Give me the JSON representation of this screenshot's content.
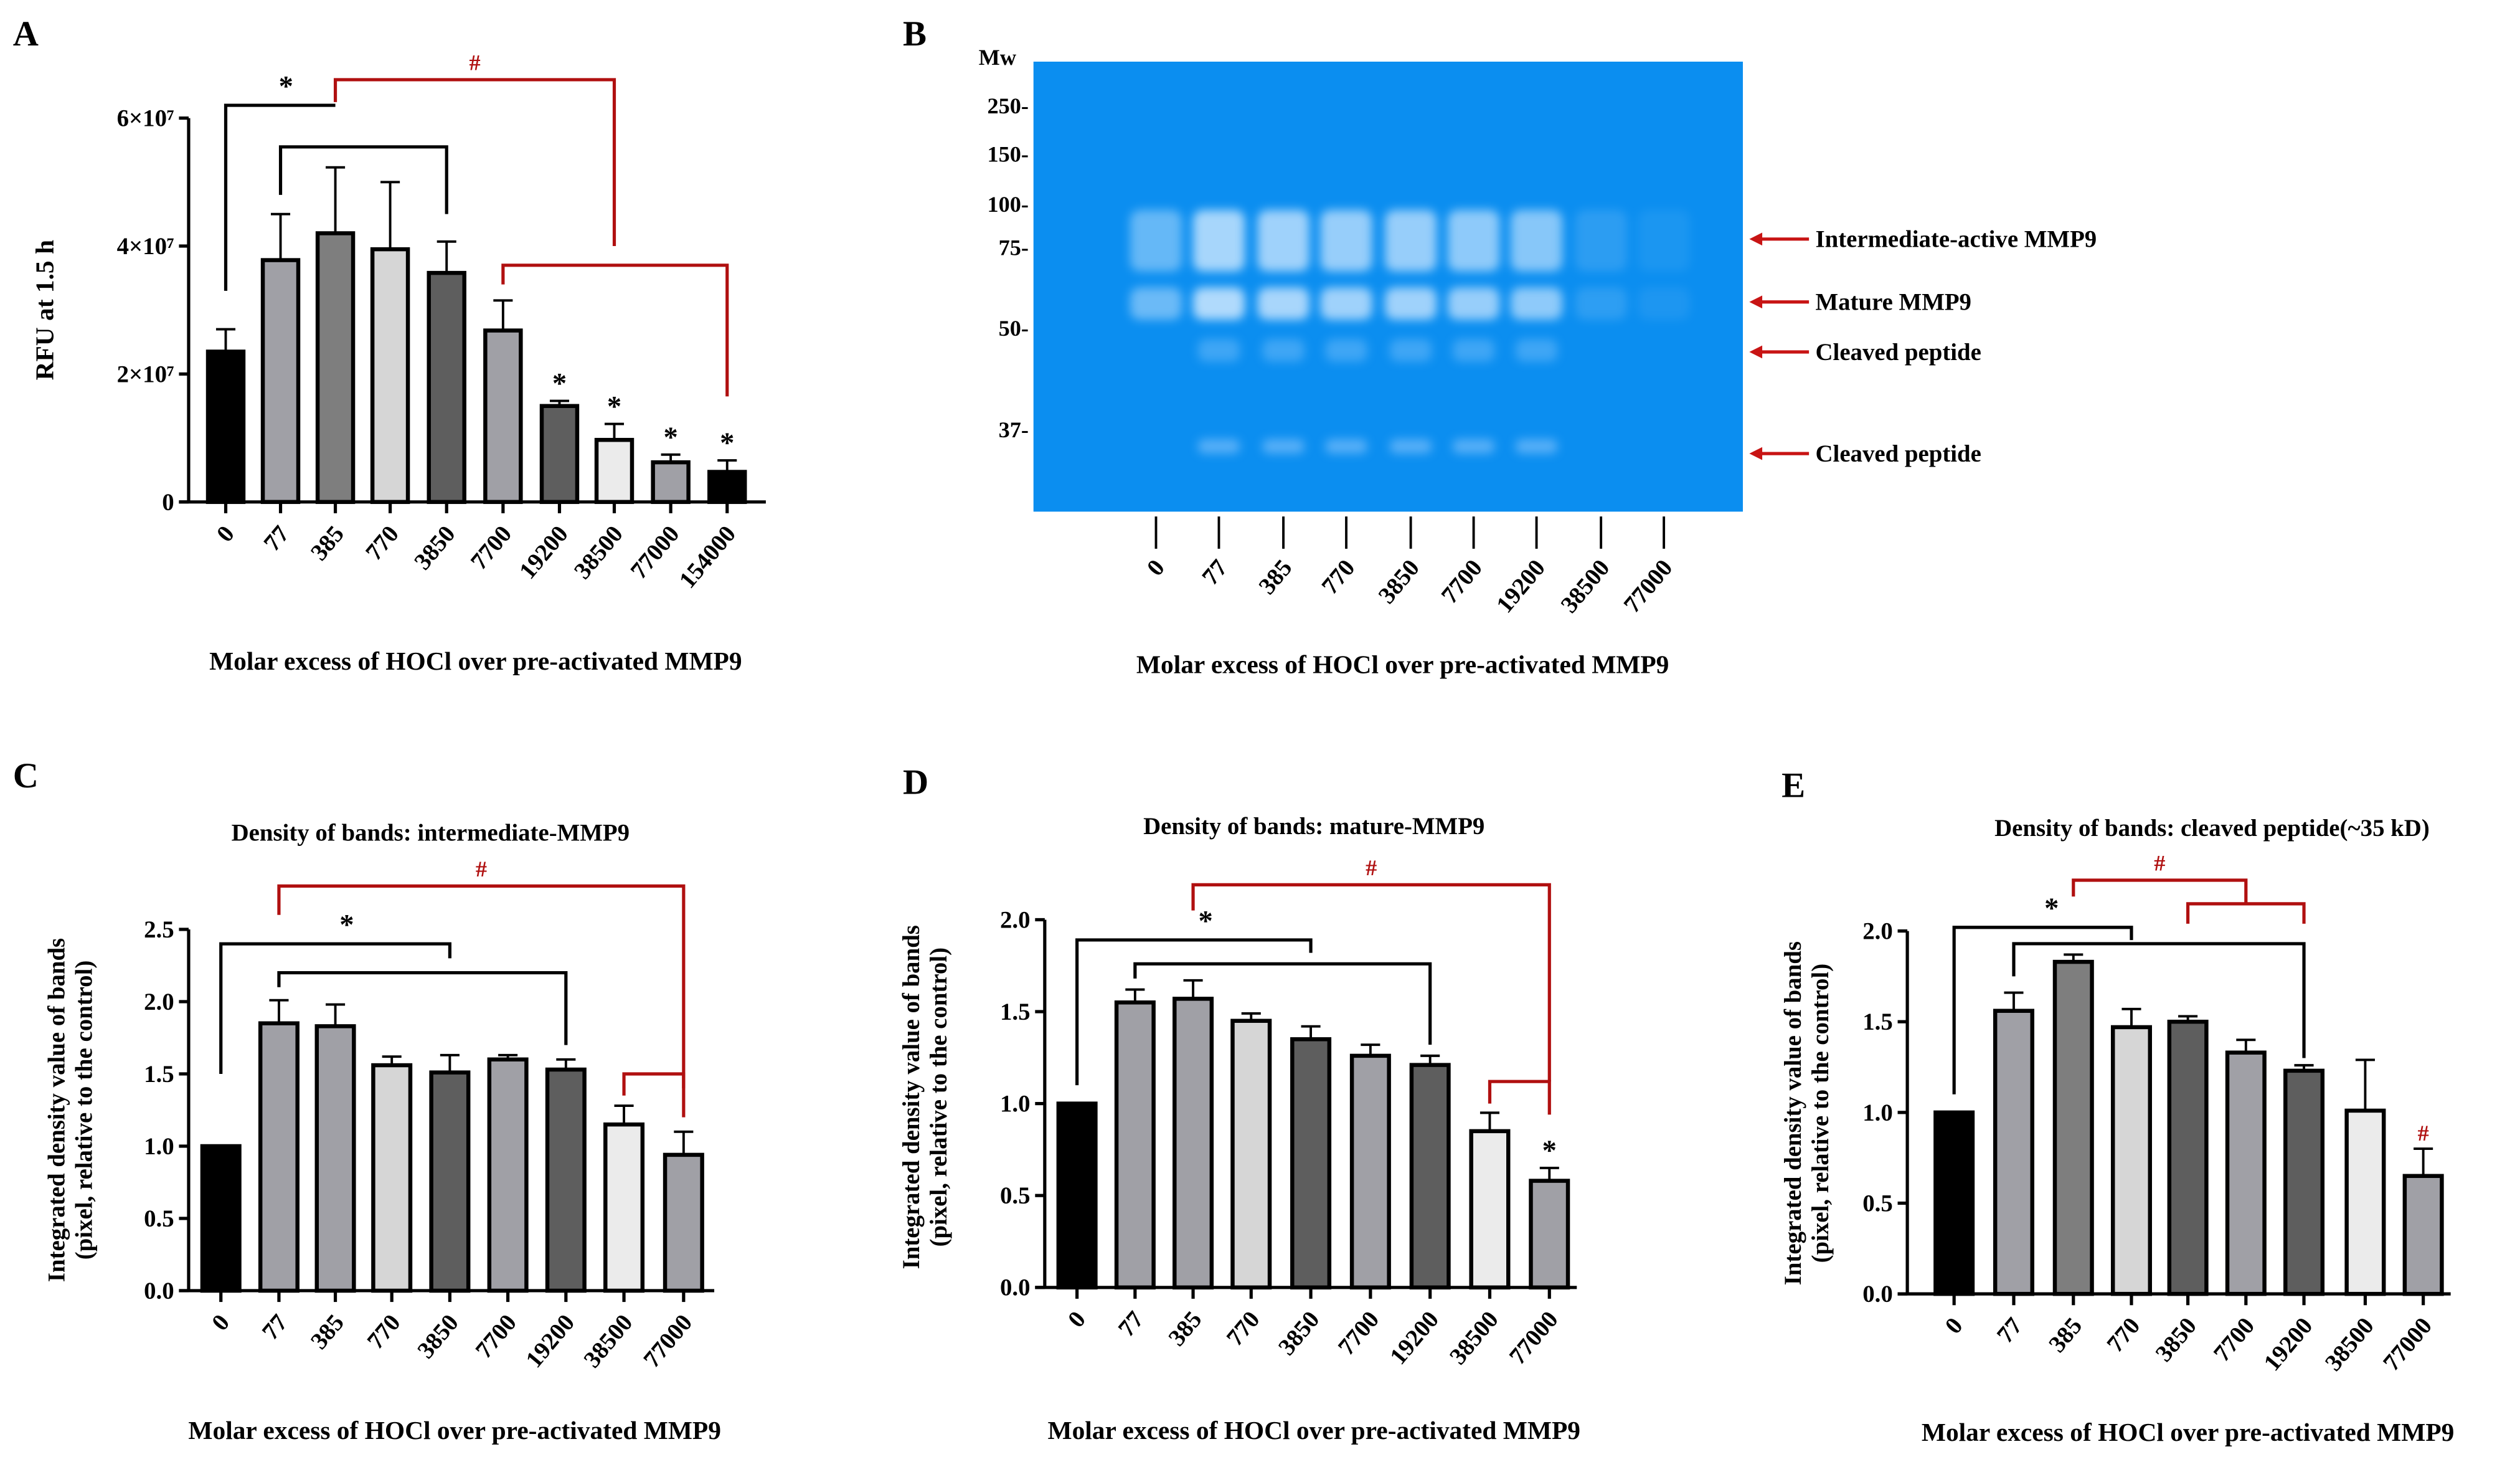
{
  "panel_labels": [
    "A",
    "B",
    "C",
    "D",
    "E"
  ],
  "colors": {
    "black": "#000000",
    "mid": "#a0a0a6",
    "dark": "#7e7e7e",
    "light": "#d6d6d6",
    "darker": "#5e5e5e",
    "lightest": "#ebebeb",
    "sig_black": "#000000",
    "sig_red": "#b01010",
    "gel": "#0b8ef0",
    "arrow": "#c81414"
  },
  "gel": {
    "mw_title": "Mw",
    "mw_markers": [
      "250-",
      "150-",
      "100-",
      "75-",
      "50-",
      "37-"
    ],
    "lanes": [
      "0",
      "77",
      "385",
      "770",
      "3850",
      "7700",
      "19200",
      "38500",
      "77000"
    ],
    "annotations": [
      "Intermediate-active MMP9",
      "Mature MMP9",
      "Cleaved peptide",
      "Cleaved peptide"
    ],
    "xlabel": "Molar excess of HOCl over pre-activated MMP9"
  },
  "chart_data": [
    {
      "id": "A",
      "type": "bar",
      "title": "",
      "xlabel": "Molar excess of HOCl over pre-activated MMP9",
      "ylabel": "RFU at 1.5 h",
      "ylim": [
        0,
        60000000
      ],
      "yticks": [
        0,
        20000000,
        40000000,
        60000000
      ],
      "ytick_labels": [
        "0",
        "2×10⁷",
        "4×10⁷",
        "6×10⁷"
      ],
      "categories": [
        "0",
        "77",
        "385",
        "770",
        "3850",
        "7700",
        "19200",
        "38500",
        "77000",
        "154000"
      ],
      "values": [
        23500000,
        37800000,
        42000000,
        39500000,
        35800000,
        26800000,
        15000000,
        9700000,
        6200000,
        4700000
      ],
      "error_top": [
        27000000,
        45000000,
        52300000,
        50000000,
        40700000,
        31500000,
        15800000,
        12200000,
        7400000,
        6500000
      ],
      "fills": [
        "black",
        "mid",
        "dark",
        "light",
        "darker",
        "mid",
        "darker",
        "lightest",
        "mid",
        "black"
      ],
      "marks": [
        "",
        "",
        "",
        "",
        "",
        "",
        "*",
        "*",
        "*",
        "*"
      ],
      "brackets": [
        {
          "from": 0,
          "to": 2,
          "level": 62000000,
          "drop_from": 33000000,
          "drop_to": null,
          "label": "*",
          "color": "sig_black",
          "center": 2
        },
        {
          "from": 1,
          "to": 4,
          "level": 55500000,
          "drop_from": 48000000,
          "drop_to": 45000000,
          "label": "",
          "color": "sig_black"
        },
        {
          "from": 2,
          "to": 7,
          "level": 66000000,
          "drop_from": 62500000,
          "drop_to": 40000000,
          "label": "#",
          "color": "sig_red"
        },
        {
          "from": 5,
          "to": 9,
          "level": 37000000,
          "drop_from": 34000000,
          "drop_to": 16500000,
          "label": "",
          "color": "sig_red"
        }
      ]
    },
    {
      "id": "C",
      "type": "bar",
      "title": "Density of bands: intermediate-MMP9",
      "xlabel": "Molar excess of HOCl over pre-activated MMP9",
      "ylabel": "Integrated density value of bands",
      "ylabel2": "(pixel, relative to the control)",
      "ylim": [
        0,
        2.5
      ],
      "yticks": [
        0,
        0.5,
        1.0,
        1.5,
        2.0,
        2.5
      ],
      "ytick_labels": [
        "0.0",
        "0.5",
        "1.0",
        "1.5",
        "2.0",
        "2.5"
      ],
      "categories": [
        "0",
        "77",
        "385",
        "770",
        "3850",
        "7700",
        "19200",
        "38500",
        "77000"
      ],
      "values": [
        1.0,
        1.85,
        1.83,
        1.56,
        1.51,
        1.6,
        1.53,
        1.15,
        0.94
      ],
      "error_top": [
        1.0,
        2.01,
        1.98,
        1.62,
        1.63,
        1.63,
        1.6,
        1.28,
        1.1
      ],
      "fills": [
        "black",
        "mid",
        "mid",
        "light",
        "darker",
        "mid",
        "darker",
        "lightest",
        "mid"
      ],
      "marks": [
        "",
        "",
        "",
        "",
        "",
        "",
        "",
        "",
        ""
      ],
      "brackets": [
        {
          "from": 0,
          "to": 4,
          "level": 2.4,
          "drop_from": 1.5,
          "drop_to": 2.3,
          "label": "*",
          "color": "sig_black",
          "center": 1.8
        },
        {
          "from": 1,
          "to": 6,
          "level": 2.2,
          "drop_from": 2.1,
          "drop_to": 1.7,
          "label": "",
          "color": "sig_black"
        },
        {
          "from": 1,
          "to": 8,
          "level": 2.8,
          "drop_from": 2.6,
          "drop_to": 1.4,
          "label": "#",
          "color": "sig_red"
        },
        {
          "from": 7,
          "to": 8,
          "level": 1.5,
          "drop_from": 1.35,
          "drop_to": 1.2,
          "label": "",
          "color": "sig_red"
        }
      ]
    },
    {
      "id": "D",
      "type": "bar",
      "title": "Density of bands: mature-MMP9",
      "xlabel": "Molar excess of HOCl over pre-activated MMP9",
      "ylabel": "Integrated density value of bands",
      "ylabel2": "(pixel, relative to the control)",
      "ylim": [
        0,
        2.0
      ],
      "yticks": [
        0,
        0.5,
        1.0,
        1.5,
        2.0
      ],
      "ytick_labels": [
        "0.0",
        "0.5",
        "1.0",
        "1.5",
        "2.0"
      ],
      "categories": [
        "0",
        "77",
        "385",
        "770",
        "3850",
        "7700",
        "19200",
        "38500",
        "77000"
      ],
      "values": [
        1.0,
        1.55,
        1.57,
        1.45,
        1.35,
        1.26,
        1.21,
        0.85,
        0.58
      ],
      "error_top": [
        1.0,
        1.62,
        1.67,
        1.49,
        1.42,
        1.32,
        1.26,
        0.95,
        0.65
      ],
      "fills": [
        "black",
        "mid",
        "mid",
        "light",
        "darker",
        "mid",
        "darker",
        "lightest",
        "mid"
      ],
      "marks": [
        "",
        "",
        "",
        "",
        "",
        "",
        "",
        "",
        "*"
      ],
      "brackets": [
        {
          "from": 0,
          "to": 4,
          "level": 1.89,
          "drop_from": 1.1,
          "drop_to": 1.82,
          "label": "*",
          "color": "sig_black",
          "center": 1.6
        },
        {
          "from": 1,
          "to": 6,
          "level": 1.76,
          "drop_from": 1.68,
          "drop_to": 1.32,
          "label": "",
          "color": "sig_black"
        },
        {
          "from": 2,
          "to": 8,
          "level": 2.19,
          "drop_from": 2.05,
          "drop_to": 1.12,
          "label": "#",
          "color": "sig_red"
        },
        {
          "from": 7,
          "to": 8,
          "level": 1.12,
          "drop_from": 1.0,
          "drop_to": 0.94,
          "label": "",
          "color": "sig_red"
        }
      ]
    },
    {
      "id": "E",
      "type": "bar",
      "title": "Density of bands: cleaved peptide(~35 kD)",
      "xlabel": "Molar excess of HOCl over pre-activated MMP9",
      "ylabel": "Integrated density value of bands",
      "ylabel2": "(pixel, relative to the control)",
      "ylim": [
        0,
        2.0
      ],
      "yticks": [
        0,
        0.5,
        1.0,
        1.5,
        2.0
      ],
      "ytick_labels": [
        "0.0",
        "0.5",
        "1.0",
        "1.5",
        "2.0"
      ],
      "categories": [
        "0",
        "77",
        "385",
        "770",
        "3850",
        "7700",
        "19200",
        "38500",
        "77000"
      ],
      "values": [
        1.0,
        1.56,
        1.83,
        1.47,
        1.5,
        1.33,
        1.23,
        1.01,
        0.65
      ],
      "error_top": [
        1.0,
        1.66,
        1.87,
        1.57,
        1.53,
        1.4,
        1.26,
        1.29,
        0.8
      ],
      "fills": [
        "black",
        "mid",
        "dark",
        "light",
        "darker",
        "mid",
        "darker",
        "lightest",
        "mid"
      ],
      "marks": [
        "",
        "",
        "",
        "",
        "",
        "",
        "",
        "",
        "#"
      ],
      "brackets": [
        {
          "from": 0,
          "to": 3,
          "level": 2.02,
          "drop_from": 1.1,
          "drop_to": 1.95,
          "label": "*",
          "color": "sig_black",
          "center": 1.5
        },
        {
          "from": 1,
          "to": 6,
          "level": 1.93,
          "drop_from": 1.75,
          "drop_to": 1.3,
          "label": "",
          "color": "sig_black"
        },
        {
          "from": 2,
          "to": 5,
          "level": 2.28,
          "drop_from": 2.19,
          "drop_to": 2.15,
          "label": "#",
          "color": "sig_red"
        },
        {
          "from": 4,
          "to": 6,
          "level": 2.15,
          "drop_from": 2.04,
          "drop_to": 2.04,
          "label": "",
          "color": "sig_red"
        }
      ]
    }
  ]
}
